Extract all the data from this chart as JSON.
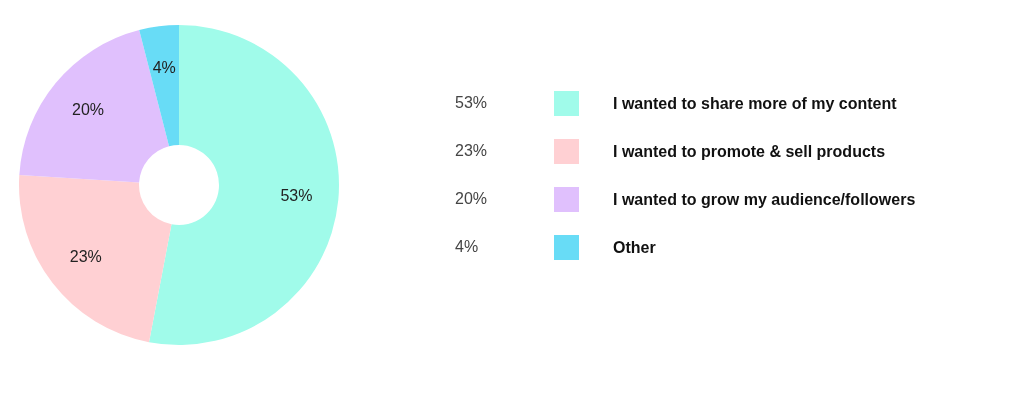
{
  "chart_data": {
    "type": "donut",
    "categories": [
      "I wanted to share more of my content",
      "I wanted to promote & sell products",
      "I wanted to grow my audience/followers",
      "Other"
    ],
    "values": [
      53,
      23,
      20,
      4
    ],
    "value_labels": [
      "53%",
      "23%",
      "20%",
      "4%"
    ],
    "colors": [
      "#a0fbea",
      "#ffd0d3",
      "#e0c0fd",
      "#68dcf6"
    ],
    "legend": "right"
  }
}
